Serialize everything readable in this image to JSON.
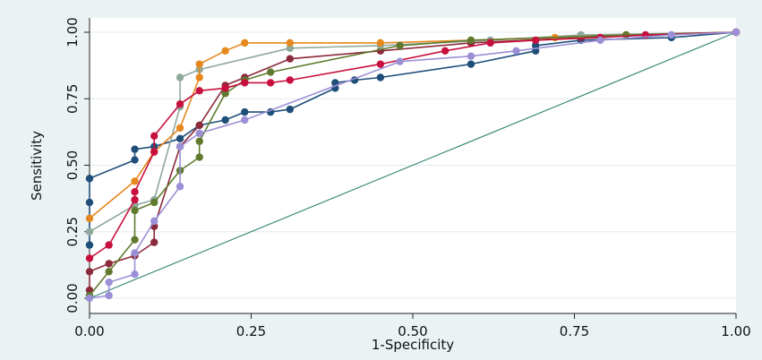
{
  "chart_data": {
    "type": "line",
    "title": "",
    "xlabel": "1-Specificity",
    "ylabel": "Sensitivity",
    "xlim": [
      0,
      1
    ],
    "ylim": [
      0,
      1
    ],
    "xticks": [
      "0.00",
      "0.25",
      "0.50",
      "0.75",
      "1.00"
    ],
    "yticks": [
      "0.00",
      "0.25",
      "0.50",
      "0.75",
      "1.00"
    ],
    "grid": "horizontal",
    "legend": "none",
    "background_color": "#eaf2f3",
    "plot_color": "#ffffff",
    "reference_line": {
      "color": "#3d8a7a",
      "points": [
        [
          0,
          0
        ],
        [
          1,
          1
        ]
      ]
    },
    "series": [
      {
        "color": "#1f4e79",
        "points": [
          [
            0,
            0.2
          ],
          [
            0,
            0.36
          ],
          [
            0,
            0.45
          ],
          [
            0.07,
            0.52
          ],
          [
            0.07,
            0.56
          ],
          [
            0.1,
            0.57
          ],
          [
            0.14,
            0.6
          ],
          [
            0.17,
            0.65
          ],
          [
            0.21,
            0.67
          ],
          [
            0.24,
            0.7
          ],
          [
            0.28,
            0.7
          ],
          [
            0.31,
            0.71
          ],
          [
            0.38,
            0.79
          ],
          [
            0.38,
            0.81
          ],
          [
            0.41,
            0.82
          ],
          [
            0.45,
            0.83
          ],
          [
            0.59,
            0.88
          ],
          [
            0.69,
            0.93
          ],
          [
            0.69,
            0.95
          ],
          [
            0.76,
            0.97
          ],
          [
            0.9,
            0.98
          ],
          [
            1,
            1
          ]
        ]
      },
      {
        "color": "#8b2a3a",
        "points": [
          [
            0,
            0.03
          ],
          [
            0,
            0.1
          ],
          [
            0.03,
            0.13
          ],
          [
            0.07,
            0.16
          ],
          [
            0.1,
            0.21
          ],
          [
            0.1,
            0.27
          ],
          [
            0.14,
            0.57
          ],
          [
            0.17,
            0.65
          ],
          [
            0.21,
            0.8
          ],
          [
            0.24,
            0.83
          ],
          [
            0.31,
            0.9
          ],
          [
            0.45,
            0.93
          ],
          [
            0.59,
            0.96
          ],
          [
            0.76,
            0.98
          ],
          [
            1,
            1
          ]
        ]
      },
      {
        "color": "#8fa89c",
        "points": [
          [
            0,
            0.25
          ],
          [
            0.07,
            0.35
          ],
          [
            0.1,
            0.37
          ],
          [
            0.14,
            0.72
          ],
          [
            0.14,
            0.83
          ],
          [
            0.17,
            0.86
          ],
          [
            0.31,
            0.94
          ],
          [
            0.45,
            0.95
          ],
          [
            0.62,
            0.97
          ],
          [
            0.76,
            0.99
          ],
          [
            1,
            1
          ]
        ]
      },
      {
        "color": "#e5881f",
        "points": [
          [
            0,
            0.3
          ],
          [
            0.07,
            0.44
          ],
          [
            0.1,
            0.55
          ],
          [
            0.14,
            0.64
          ],
          [
            0.17,
            0.83
          ],
          [
            0.17,
            0.88
          ],
          [
            0.21,
            0.93
          ],
          [
            0.24,
            0.96
          ],
          [
            0.31,
            0.96
          ],
          [
            0.45,
            0.96
          ],
          [
            0.59,
            0.97
          ],
          [
            0.72,
            0.98
          ],
          [
            0.83,
            0.99
          ],
          [
            1,
            1
          ]
        ]
      },
      {
        "color": "#5f7a2e",
        "points": [
          [
            0,
            0.01
          ],
          [
            0.03,
            0.1
          ],
          [
            0.07,
            0.22
          ],
          [
            0.07,
            0.33
          ],
          [
            0.1,
            0.36
          ],
          [
            0.14,
            0.48
          ],
          [
            0.17,
            0.53
          ],
          [
            0.17,
            0.59
          ],
          [
            0.21,
            0.77
          ],
          [
            0.24,
            0.82
          ],
          [
            0.28,
            0.85
          ],
          [
            0.48,
            0.95
          ],
          [
            0.59,
            0.97
          ],
          [
            0.83,
            0.99
          ],
          [
            1,
            1
          ]
        ]
      },
      {
        "color": "#c8103e",
        "points": [
          [
            0,
            0.15
          ],
          [
            0.03,
            0.2
          ],
          [
            0.07,
            0.37
          ],
          [
            0.07,
            0.4
          ],
          [
            0.1,
            0.55
          ],
          [
            0.1,
            0.61
          ],
          [
            0.14,
            0.73
          ],
          [
            0.17,
            0.78
          ],
          [
            0.21,
            0.79
          ],
          [
            0.24,
            0.81
          ],
          [
            0.28,
            0.81
          ],
          [
            0.31,
            0.82
          ],
          [
            0.45,
            0.88
          ],
          [
            0.55,
            0.93
          ],
          [
            0.62,
            0.96
          ],
          [
            0.69,
            0.97
          ],
          [
            0.79,
            0.98
          ],
          [
            0.86,
            0.99
          ],
          [
            1,
            1
          ]
        ]
      },
      {
        "color": "#9b8fd6",
        "points": [
          [
            0,
            0
          ],
          [
            0.03,
            0.01
          ],
          [
            0.03,
            0.06
          ],
          [
            0.07,
            0.09
          ],
          [
            0.07,
            0.17
          ],
          [
            0.1,
            0.29
          ],
          [
            0.14,
            0.42
          ],
          [
            0.14,
            0.57
          ],
          [
            0.17,
            0.62
          ],
          [
            0.24,
            0.67
          ],
          [
            0.48,
            0.89
          ],
          [
            0.59,
            0.91
          ],
          [
            0.66,
            0.93
          ],
          [
            0.79,
            0.97
          ],
          [
            0.9,
            0.99
          ],
          [
            1,
            1
          ]
        ]
      }
    ]
  }
}
